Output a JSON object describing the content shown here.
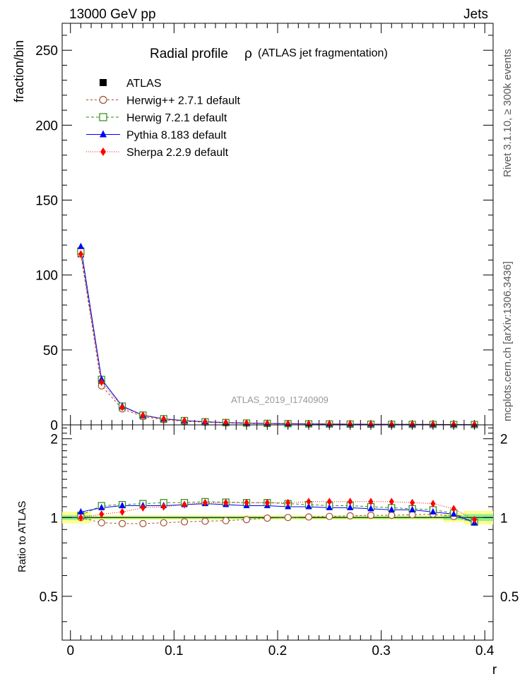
{
  "header": {
    "left": "13000 GeV pp",
    "right": "Jets",
    "side_top": "Rivet 3.1.10, ≥ 300k events",
    "side_bottom": "mcplots.cern.ch [arXiv:1306.3436]"
  },
  "chart_data": [
    {
      "type": "line",
      "title": "Radial profile",
      "title_symbol": "ρ",
      "title_suffix": "(ATLAS jet fragmentation)",
      "watermark": "ATLAS_2019_I1740909",
      "ylabel": "fraction/bin",
      "xlabel": "",
      "xlim": [
        -0.008,
        0.408
      ],
      "ylim": [
        0,
        268
      ],
      "yticks": [
        0,
        50,
        100,
        150,
        200,
        250
      ],
      "ytick_labels": [
        "0",
        "50",
        "100",
        "150",
        "200",
        "250"
      ],
      "x": [
        0.01,
        0.03,
        0.05,
        0.07,
        0.09,
        0.11,
        0.13,
        0.15,
        0.17,
        0.19,
        0.21,
        0.23,
        0.25,
        0.27,
        0.29,
        0.31,
        0.33,
        0.35,
        0.37,
        0.39
      ],
      "series": [
        {
          "name": "ATLAS",
          "color": "#000000",
          "marker": "square-filled",
          "values": [
            114,
            27.5,
            11.3,
            5.8,
            3.6,
            2.5,
            1.8,
            1.35,
            1.05,
            0.85,
            0.7,
            0.58,
            0.5,
            0.43,
            0.38,
            0.33,
            0.29,
            0.26,
            0.23,
            0.21
          ]
        },
        {
          "name": "Herwig++ 2.7.1 default",
          "color": "#a0522d",
          "marker": "circle-open",
          "dash": "3,3",
          "values": [
            114,
            26,
            10.7,
            5.5,
            3.45,
            2.4,
            1.75,
            1.3,
            1.03,
            0.85,
            0.7,
            0.58,
            0.5,
            0.44,
            0.39,
            0.34,
            0.3,
            0.27,
            0.23,
            0.2
          ]
        },
        {
          "name": "Herwig 7.2.1 default",
          "color": "#2e8b10",
          "marker": "square-open",
          "dash": "4,3",
          "values": [
            116,
            30.3,
            12.5,
            6.5,
            4.1,
            2.85,
            2.07,
            1.55,
            1.2,
            0.97,
            0.79,
            0.65,
            0.56,
            0.48,
            0.42,
            0.36,
            0.32,
            0.28,
            0.24,
            0.2
          ]
        },
        {
          "name": "Pythia 8.183 default",
          "color": "#0000ff",
          "marker": "triangle-filled",
          "dash": "",
          "values": [
            119,
            30.5,
            12.5,
            6.4,
            4.0,
            2.8,
            2.05,
            1.52,
            1.17,
            0.94,
            0.77,
            0.64,
            0.54,
            0.47,
            0.41,
            0.35,
            0.31,
            0.27,
            0.24,
            0.2
          ]
        },
        {
          "name": "Sherpa 2.2.9 default",
          "color": "#ff0000",
          "marker": "diamond-filled",
          "dash": "1,2",
          "values": [
            114,
            28.5,
            11.8,
            6.3,
            3.9,
            2.8,
            2.05,
            1.53,
            1.2,
            0.97,
            0.8,
            0.67,
            0.58,
            0.5,
            0.44,
            0.38,
            0.33,
            0.29,
            0.25,
            0.2
          ]
        }
      ]
    },
    {
      "type": "line",
      "title": "Ratio to ATLAS",
      "ylabel": "Ratio to ATLAS",
      "xlabel": "r",
      "xlim": [
        -0.008,
        0.408
      ],
      "ylim": [
        0.34,
        2.26
      ],
      "xticks": [
        0,
        0.1,
        0.2,
        0.3,
        0.4
      ],
      "xtick_labels": [
        "0",
        "0.1",
        "0.2",
        "0.3",
        "0.4"
      ],
      "yticks": [
        0.5,
        1,
        2
      ],
      "ytick_labels": [
        "0.5",
        "1",
        "2"
      ],
      "x": [
        0.01,
        0.03,
        0.05,
        0.07,
        0.09,
        0.11,
        0.13,
        0.15,
        0.17,
        0.19,
        0.21,
        0.23,
        0.25,
        0.27,
        0.29,
        0.31,
        0.33,
        0.35,
        0.37,
        0.39
      ],
      "band_inner": [
        0.02,
        0.01,
        0.01,
        0.01,
        0.01,
        0.01,
        0.01,
        0.01,
        0.01,
        0.01,
        0.01,
        0.01,
        0.01,
        0.01,
        0.01,
        0.01,
        0.01,
        0.01,
        0.02,
        0.03
      ],
      "band_outer": [
        0.05,
        0.02,
        0.02,
        0.02,
        0.02,
        0.02,
        0.02,
        0.02,
        0.02,
        0.02,
        0.02,
        0.02,
        0.02,
        0.02,
        0.02,
        0.02,
        0.02,
        0.02,
        0.04,
        0.06
      ],
      "series": [
        {
          "name": "Herwig++ 2.7.1 default",
          "values": [
            1.0,
            0.955,
            0.948,
            0.948,
            0.955,
            0.963,
            0.968,
            0.973,
            0.982,
            0.995,
            1.0,
            1.005,
            1.01,
            1.015,
            1.02,
            1.02,
            1.025,
            1.03,
            1.01,
            0.96
          ]
        },
        {
          "name": "Herwig 7.2.1 default",
          "values": [
            1.02,
            1.11,
            1.12,
            1.13,
            1.14,
            1.14,
            1.15,
            1.145,
            1.14,
            1.14,
            1.13,
            1.12,
            1.11,
            1.11,
            1.1,
            1.09,
            1.08,
            1.07,
            1.04,
            0.96
          ]
        },
        {
          "name": "Pythia 8.183 default",
          "values": [
            1.05,
            1.09,
            1.11,
            1.11,
            1.11,
            1.12,
            1.13,
            1.12,
            1.11,
            1.11,
            1.1,
            1.1,
            1.09,
            1.09,
            1.08,
            1.07,
            1.07,
            1.05,
            1.03,
            0.955
          ]
        },
        {
          "name": "Sherpa 2.2.9 default",
          "values": [
            1.0,
            1.03,
            1.05,
            1.09,
            1.1,
            1.12,
            1.14,
            1.14,
            1.14,
            1.14,
            1.14,
            1.15,
            1.15,
            1.15,
            1.15,
            1.15,
            1.14,
            1.13,
            1.08,
            0.98
          ]
        }
      ]
    }
  ]
}
